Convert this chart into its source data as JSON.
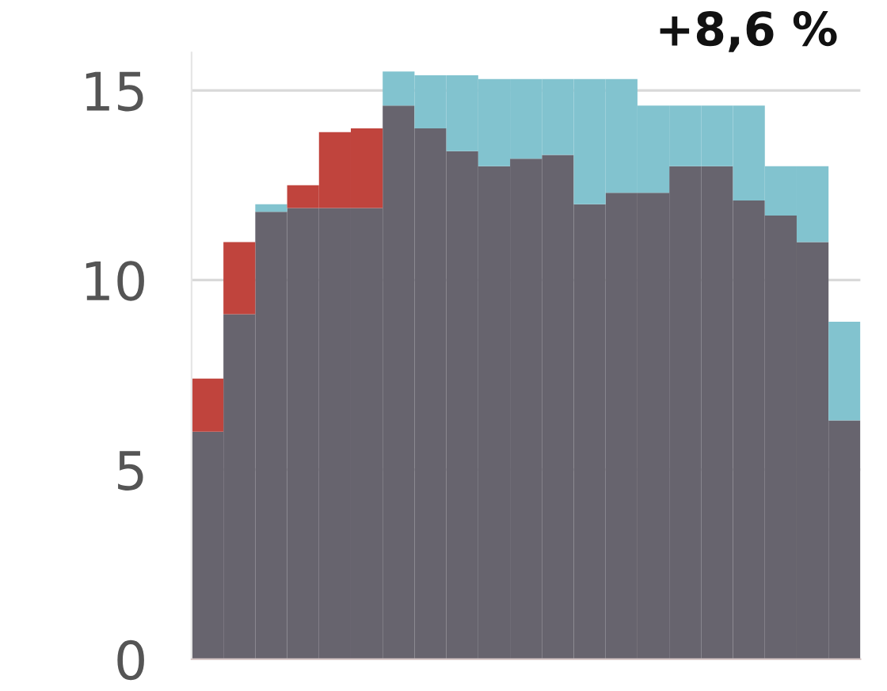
{
  "chart_data": {
    "type": "bar",
    "title": "+8,6 %",
    "stacked": true,
    "categories": [
      null,
      null,
      null,
      null,
      null,
      null,
      null,
      null,
      null,
      null,
      null,
      null,
      null,
      null,
      null,
      null,
      null,
      null,
      null,
      null,
      null
    ],
    "series": [
      {
        "color": "#67646e",
        "values": [
          6.0,
          9.1,
          11.8,
          11.9,
          11.9,
          11.9,
          14.6,
          14.0,
          13.4,
          13.0,
          13.2,
          13.3,
          12.0,
          12.3,
          12.3,
          13.0,
          13.0,
          12.1,
          11.7,
          11.0,
          6.3
        ]
      },
      {
        "colors": [
          "#c0443d",
          "#c0443d",
          "#82c3cf",
          "#c0443d",
          "#c0443d",
          "#c0443d",
          "#82c3cf",
          "#82c3cf",
          "#82c3cf",
          "#82c3cf",
          "#82c3cf",
          "#82c3cf",
          "#82c3cf",
          "#82c3cf",
          "#82c3cf",
          "#82c3cf",
          "#82c3cf",
          "#82c3cf",
          "#82c3cf",
          "#82c3cf",
          "#82c3cf"
        ],
        "values": [
          1.4,
          1.9,
          0.2,
          0.6,
          2.0,
          2.1,
          0.9,
          1.4,
          2.0,
          2.3,
          2.1,
          2.0,
          3.3,
          3.0,
          2.3,
          1.6,
          1.6,
          2.5,
          1.3,
          2.0,
          2.6
        ]
      }
    ],
    "ylim": [
      0,
      16
    ],
    "yticks": [
      0,
      5,
      10,
      15
    ],
    "grid": "y",
    "tick_labels": "y"
  }
}
